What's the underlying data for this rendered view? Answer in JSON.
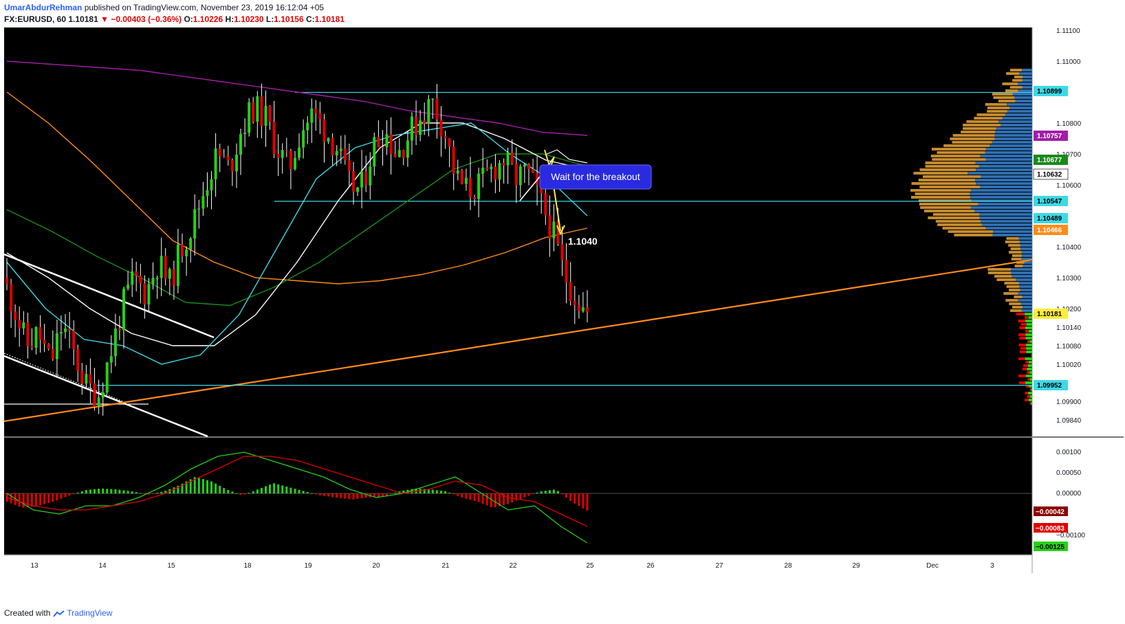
{
  "header": {
    "author": "UmarAbdurRehman",
    "published_text": "published on TradingView.com, November 23, 2019 16:12:04 +05",
    "symbol": "FX:EURUSD, 60",
    "last": "1.10181",
    "change": "−0.00403 (−0.36%)",
    "open_label": "O:",
    "open": "1.10226",
    "high_label": "H:",
    "high": "1.10230",
    "low_label": "L:",
    "low": "1.10156",
    "close_label": "C:",
    "close": "1.10181"
  },
  "footer": {
    "created_with": "Created with",
    "brand": "TradingView"
  },
  "colors": {
    "background": "#000000",
    "up": "#26d117",
    "down": "#e00000",
    "cyan": "#3ed8e6",
    "orange": "#ff8c1a",
    "purple": "#a01ea8",
    "white": "#ffffff",
    "blue_vol": "#2f6fb2",
    "tan_vol": "#c48a2e",
    "annotation_bg": "#2a2ae0"
  },
  "annotations": {
    "callout": "Wait for the breakout",
    "target": "1.1040"
  },
  "chart_data": [
    {
      "type": "candlestick",
      "symbol": "FX:EURUSD",
      "interval": "60",
      "x_tick_labels": [
        "13",
        "14",
        "15",
        "18",
        "19",
        "20",
        "21",
        "22",
        "25",
        "26",
        "27",
        "28",
        "29",
        "Dec",
        "3"
      ],
      "y_tick_labels": [
        "1.11100",
        "1.11000",
        "1.10800",
        "1.10700",
        "1.10600",
        "1.10400",
        "1.10300",
        "1.10200",
        "1.10140",
        "1.10080",
        "1.10020",
        "1.09900",
        "1.09840"
      ],
      "ylim": [
        1.0978,
        1.1112
      ],
      "horizontal_levels": [
        1.10899,
        1.10547,
        1.09952
      ],
      "price_labels": [
        {
          "value": "1.10899",
          "color": "#3ed8e6"
        },
        {
          "value": "1.10757",
          "color": "#a01ea8"
        },
        {
          "value": "1.10677",
          "color": "#1a8a1a"
        },
        {
          "value": "1.10632",
          "color": "#ffffff"
        },
        {
          "value": "1.10547",
          "color": "#3ed8e6"
        },
        {
          "value": "1.10489",
          "color": "#3ed8e6"
        },
        {
          "value": "1.10466",
          "color": "#ff8c1a"
        },
        {
          "value": "1.10181",
          "color": "#ffeb3b"
        },
        {
          "value": "1.09952",
          "color": "#3ed8e6"
        }
      ],
      "price_path": [
        1.103,
        1.102,
        1.1008,
        1.1012,
        1.1002,
        1.1015,
        1.1005,
        1.0995,
        1.0992,
        1.1005,
        1.102,
        1.103,
        1.1025,
        1.1035,
        1.1028,
        1.104,
        1.1048,
        1.106,
        1.107,
        1.1065,
        1.1078,
        1.1085,
        1.1082,
        1.1072,
        1.1065,
        1.1078,
        1.1083,
        1.1078,
        1.1072,
        1.106,
        1.1058,
        1.1072,
        1.1078,
        1.107,
        1.1076,
        1.1082,
        1.1087,
        1.1078,
        1.1062,
        1.1058,
        1.106,
        1.1065,
        1.1068,
        1.1062,
        1.1064,
        1.1055,
        1.1046,
        1.1032,
        1.1024,
        1.1018
      ],
      "moving_averages": [
        {
          "color": "#a01ea8",
          "values": [
            1.11,
            1.1099,
            1.1098,
            1.1097,
            1.1095,
            1.1093,
            1.1091,
            1.1089,
            1.1087,
            1.1084,
            1.1082,
            1.108,
            1.1077,
            1.1076
          ]
        },
        {
          "color": "#ff8c1a",
          "values": [
            1.109,
            1.108,
            1.1068,
            1.1055,
            1.1042,
            1.1035,
            1.103,
            1.1029,
            1.1028,
            1.1029,
            1.1031,
            1.1034,
            1.1038,
            1.1043,
            1.1046
          ]
        },
        {
          "color": "#1a8a1a",
          "values": [
            1.1052,
            1.1045,
            1.1037,
            1.103,
            1.1022,
            1.1021,
            1.1027,
            1.1035,
            1.1045,
            1.1055,
            1.1065,
            1.107,
            1.107,
            1.1066
          ]
        },
        {
          "color": "#ffffff",
          "values": [
            1.1038,
            1.103,
            1.102,
            1.1012,
            1.1008,
            1.1008,
            1.1018,
            1.1035,
            1.1055,
            1.1072,
            1.108,
            1.108,
            1.1075,
            1.1068,
            1.1065
          ]
        },
        {
          "color": "#3ed8e6",
          "values": [
            1.1035,
            1.102,
            1.101,
            1.1008,
            1.1002,
            1.1005,
            1.1018,
            1.104,
            1.1062,
            1.1072,
            1.1076,
            1.1078,
            1.108,
            1.107,
            1.1062,
            1.105
          ]
        }
      ]
    },
    {
      "type": "histogram",
      "indicator": "MACD",
      "y_tick_labels": [
        "0.00100",
        "0.00050",
        "0.00000",
        "−0.00100"
      ],
      "value_labels": [
        {
          "value": "−0.00042",
          "color": "#8b0000"
        },
        {
          "value": "−0.00083",
          "color": "#e00000"
        },
        {
          "value": "−0.00125",
          "color": "#26d117"
        }
      ],
      "histogram": [
        -0.0002,
        -0.00035,
        -0.0003,
        -0.0002,
        -5e-05,
        8e-05,
        0.00012,
        0.0001,
        5e-05,
        -3e-05,
        5e-05,
        0.0002,
        0.0004,
        0.0003,
        0.0001,
        -5e-05,
        0.0001,
        0.00025,
        0.00015,
        5e-05,
        -5e-05,
        -0.0001,
        -0.00015,
        -0.0001,
        -8e-05,
        5e-05,
        0.00012,
        0.0001,
        5e-05,
        -0.0001,
        -0.0002,
        -0.00035,
        -0.00025,
        -0.0001,
        5e-05,
        0.0001,
        -0.0002,
        -0.00042
      ],
      "macd": [
        0.0,
        -0.0004,
        -0.0005,
        -0.0003,
        -0.0003,
        -0.0001,
        0.0002,
        0.0006,
        0.0009,
        0.001,
        0.0008,
        0.0006,
        0.0004,
        0.0001,
        -0.0001,
        0.0,
        0.0002,
        0.0004,
        0.0,
        -0.0004,
        -0.0003,
        -0.0008,
        -0.0012
      ],
      "signal": [
        -0.0001,
        -0.0003,
        -0.0004,
        -0.0004,
        -0.0003,
        -0.0002,
        0.0,
        0.0003,
        0.0006,
        0.0009,
        0.0009,
        0.0008,
        0.0006,
        0.0004,
        0.0002,
        0.0,
        0.0001,
        0.0003,
        0.0002,
        -0.0001,
        -0.0002,
        -0.0005,
        -0.0008
      ]
    }
  ]
}
